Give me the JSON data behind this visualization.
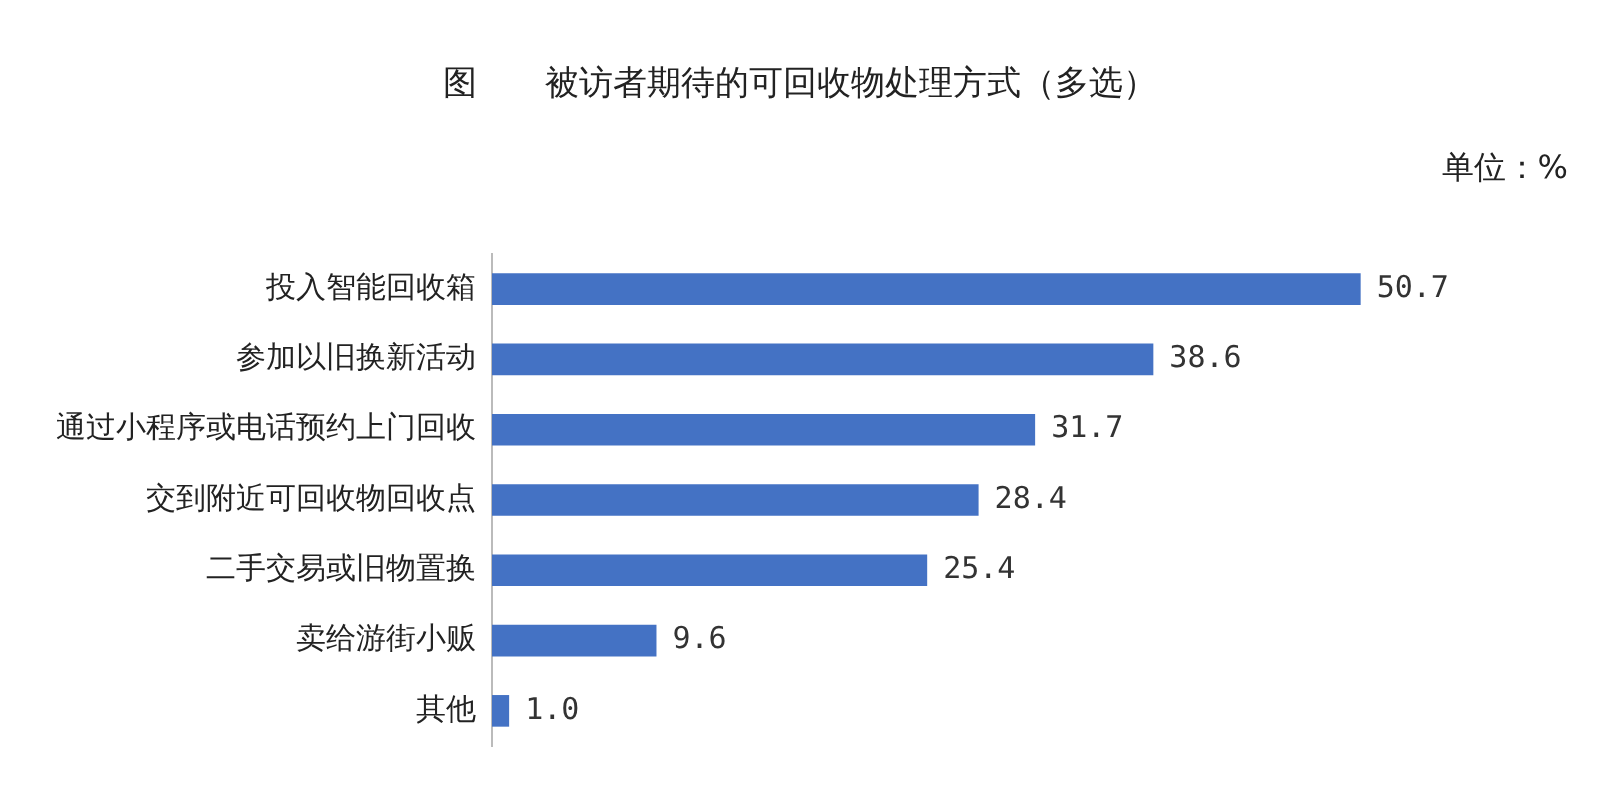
{
  "chart_data": {
    "type": "bar",
    "orientation": "horizontal",
    "title": "图　　被访者期待的可回收物处理方式（多选）",
    "annotations": [
      "单位：%"
    ],
    "categories": [
      "投入智能回收箱",
      "参加以旧换新活动",
      "通过小程序或电话预约上门回收",
      "交到附近可回收物回收点",
      "二手交易或旧物置换",
      "卖给游街小贩",
      "其他"
    ],
    "values": [
      50.7,
      38.6,
      31.7,
      28.4,
      25.4,
      9.6,
      1.0
    ],
    "value_labels": [
      "50.7",
      "38.6",
      "31.7",
      "28.4",
      "25.4",
      "9.6",
      "1.0"
    ],
    "color": "#4472c4",
    "grid": false,
    "legend": false
  }
}
